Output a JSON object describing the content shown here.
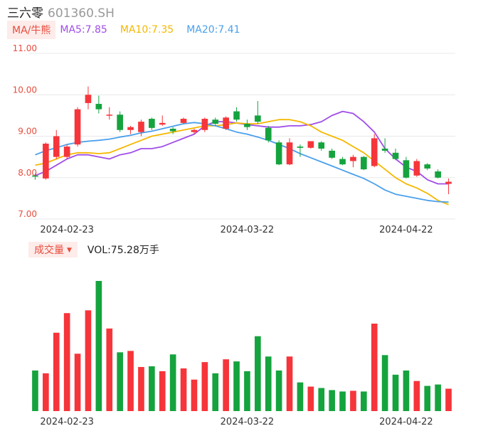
{
  "header": {
    "name": "三六零",
    "code": "601360.SH"
  },
  "ma_bar": {
    "tag": "MA/牛熊",
    "items": [
      {
        "label": "MA5:7.85",
        "color": "#a04de8"
      },
      {
        "label": "MA10:7.35",
        "color": "#f5b800"
      },
      {
        "label": "MA20:7.41",
        "color": "#4aa0ec"
      }
    ]
  },
  "volume_bar": {
    "tag": "成交量",
    "label": "VOL:75.28万手"
  },
  "colors": {
    "up": "#f5353a",
    "down": "#15a33e",
    "grid": "#e8e8e8"
  },
  "chart_data": [
    {
      "type": "candlestick",
      "y_ticks": [
        "11.00",
        "10.00",
        "9.00",
        "8.00",
        "7.00"
      ],
      "ylim": [
        7.0,
        11.0
      ],
      "x_labels": [
        "2024-02-23",
        "2024-03-22",
        "2024-04-22"
      ],
      "x_label_index": [
        3,
        20,
        35
      ],
      "candles": [
        {
          "o": 8.05,
          "h": 8.1,
          "l": 7.95,
          "c": 8.03
        },
        {
          "o": 7.98,
          "h": 8.85,
          "l": 7.95,
          "c": 8.82
        },
        {
          "o": 8.5,
          "h": 9.15,
          "l": 8.45,
          "c": 9.0
        },
        {
          "o": 8.5,
          "h": 8.8,
          "l": 8.45,
          "c": 8.75
        },
        {
          "o": 8.8,
          "h": 9.7,
          "l": 8.75,
          "c": 9.65
        },
        {
          "o": 9.8,
          "h": 10.2,
          "l": 9.65,
          "c": 10.0
        },
        {
          "o": 9.78,
          "h": 9.98,
          "l": 9.55,
          "c": 9.65
        },
        {
          "o": 9.5,
          "h": 9.7,
          "l": 9.4,
          "c": 9.52
        },
        {
          "o": 9.52,
          "h": 9.6,
          "l": 9.1,
          "c": 9.15
        },
        {
          "o": 9.15,
          "h": 9.25,
          "l": 9.05,
          "c": 9.22
        },
        {
          "o": 9.1,
          "h": 9.4,
          "l": 9.0,
          "c": 9.35
        },
        {
          "o": 9.42,
          "h": 9.45,
          "l": 9.15,
          "c": 9.2
        },
        {
          "o": 9.28,
          "h": 9.5,
          "l": 9.25,
          "c": 9.32
        },
        {
          "o": 9.18,
          "h": 9.22,
          "l": 9.05,
          "c": 9.12
        },
        {
          "o": 9.32,
          "h": 9.45,
          "l": 9.3,
          "c": 9.42
        },
        {
          "o": 9.1,
          "h": 9.18,
          "l": 9.05,
          "c": 9.15
        },
        {
          "o": 9.15,
          "h": 9.45,
          "l": 9.1,
          "c": 9.42
        },
        {
          "o": 9.4,
          "h": 9.45,
          "l": 9.25,
          "c": 9.3
        },
        {
          "o": 9.18,
          "h": 9.48,
          "l": 9.15,
          "c": 9.45
        },
        {
          "o": 9.6,
          "h": 9.7,
          "l": 9.35,
          "c": 9.4
        },
        {
          "o": 9.3,
          "h": 9.4,
          "l": 9.15,
          "c": 9.22
        },
        {
          "o": 9.5,
          "h": 9.85,
          "l": 9.3,
          "c": 9.35
        },
        {
          "o": 9.2,
          "h": 9.25,
          "l": 8.85,
          "c": 8.9
        },
        {
          "o": 8.85,
          "h": 8.9,
          "l": 8.3,
          "c": 8.32
        },
        {
          "o": 8.32,
          "h": 8.95,
          "l": 8.3,
          "c": 8.85
        },
        {
          "o": 8.75,
          "h": 8.8,
          "l": 8.5,
          "c": 8.72
        },
        {
          "o": 8.72,
          "h": 8.88,
          "l": 8.7,
          "c": 8.88
        },
        {
          "o": 8.85,
          "h": 8.88,
          "l": 8.65,
          "c": 8.7
        },
        {
          "o": 8.65,
          "h": 8.7,
          "l": 8.45,
          "c": 8.48
        },
        {
          "o": 8.45,
          "h": 8.5,
          "l": 8.3,
          "c": 8.32
        },
        {
          "o": 8.4,
          "h": 8.55,
          "l": 8.25,
          "c": 8.5
        },
        {
          "o": 8.5,
          "h": 8.52,
          "l": 8.18,
          "c": 8.2
        },
        {
          "o": 8.28,
          "h": 9.05,
          "l": 8.25,
          "c": 8.95
        },
        {
          "o": 8.7,
          "h": 8.95,
          "l": 8.6,
          "c": 8.65
        },
        {
          "o": 8.6,
          "h": 8.7,
          "l": 8.42,
          "c": 8.45
        },
        {
          "o": 8.42,
          "h": 8.5,
          "l": 7.98,
          "c": 8.0
        },
        {
          "o": 8.05,
          "h": 8.45,
          "l": 8.02,
          "c": 8.4
        },
        {
          "o": 8.32,
          "h": 8.35,
          "l": 8.18,
          "c": 8.22
        },
        {
          "o": 8.15,
          "h": 8.2,
          "l": 7.98,
          "c": 8.0
        },
        {
          "o": 7.85,
          "h": 7.98,
          "l": 7.6,
          "c": 7.9
        }
      ],
      "ma5": [
        8.05,
        8.15,
        8.3,
        8.45,
        8.55,
        8.55,
        8.5,
        8.45,
        8.55,
        8.6,
        8.7,
        8.7,
        8.75,
        8.85,
        8.95,
        9.05,
        9.25,
        9.35,
        9.35,
        9.32,
        9.28,
        9.25,
        9.22,
        9.22,
        9.25,
        9.25,
        9.28,
        9.35,
        9.5,
        9.6,
        9.55,
        9.35,
        9.1,
        8.7,
        8.45,
        8.25,
        8.15,
        7.95,
        7.85,
        7.85
      ],
      "ma10": [
        8.3,
        8.35,
        8.45,
        8.55,
        8.6,
        8.6,
        8.58,
        8.6,
        8.7,
        8.8,
        8.9,
        9.0,
        9.05,
        9.1,
        9.15,
        9.2,
        9.25,
        9.25,
        9.28,
        9.32,
        9.3,
        9.3,
        9.35,
        9.4,
        9.4,
        9.35,
        9.25,
        9.1,
        9.0,
        8.9,
        8.75,
        8.6,
        8.4,
        8.2,
        8.0,
        7.85,
        7.75,
        7.62,
        7.45,
        7.35
      ],
      "ma20": [
        8.55,
        8.65,
        8.72,
        8.8,
        8.85,
        8.88,
        8.9,
        8.93,
        8.98,
        9.02,
        9.08,
        9.12,
        9.18,
        9.24,
        9.3,
        9.33,
        9.3,
        9.25,
        9.18,
        9.1,
        9.05,
        8.98,
        8.9,
        8.8,
        8.7,
        8.58,
        8.48,
        8.38,
        8.28,
        8.18,
        8.08,
        7.98,
        7.85,
        7.7,
        7.6,
        7.55,
        7.5,
        7.45,
        7.42,
        7.41
      ]
    },
    {
      "type": "bar",
      "volumes": [
        58,
        54,
        112,
        140,
        82,
        144,
        186,
        118,
        84,
        86,
        63,
        64,
        57,
        81,
        61,
        45,
        70,
        54,
        74,
        71,
        57,
        107,
        78,
        58,
        78,
        41,
        35,
        33,
        30,
        28,
        29,
        28,
        125,
        80,
        52,
        58,
        43,
        36,
        38,
        32
      ],
      "x_labels": [
        "2024-02-23",
        "2024-03-22",
        "2024-04-22"
      ],
      "x_label_index": [
        3,
        20,
        35
      ]
    }
  ]
}
